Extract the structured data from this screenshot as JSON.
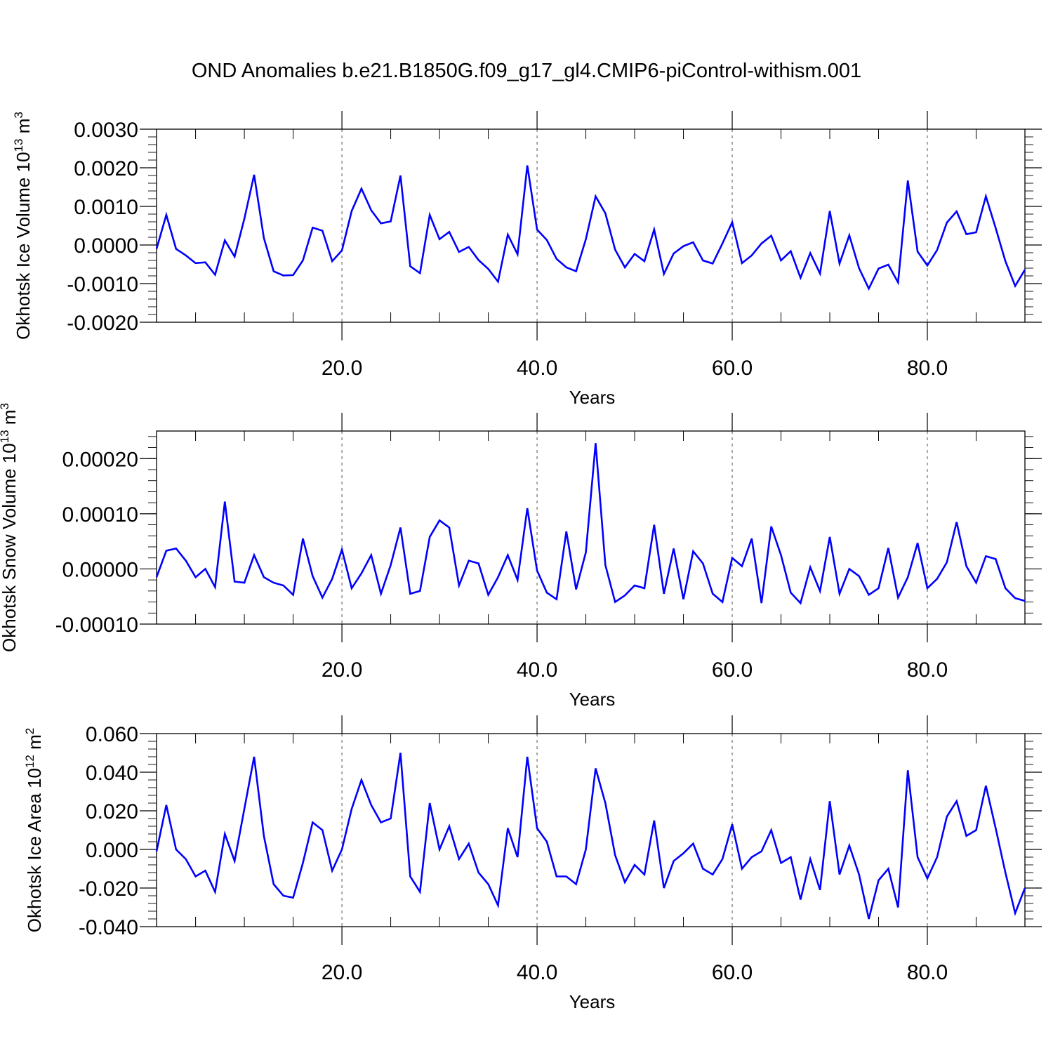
{
  "title": "OND Anomalies b.e21.B1850G.f09_g17_gl4.CMIP6-piControl-withism.001",
  "colors": {
    "line": "#0000ff",
    "axes": "#000000",
    "grid": "#555555"
  },
  "chart_data": [
    {
      "type": "line",
      "ylabel": {
        "text": "Okhotsk Ice Volume 10",
        "sup": "13",
        "unit": " m",
        "unit_sup": "3"
      },
      "xlabel": "Years",
      "xlim": [
        1,
        90
      ],
      "ylim": [
        -0.002,
        0.003
      ],
      "xticks": [
        20,
        40,
        60,
        80
      ],
      "xtick_labels": [
        "20.0",
        "40.0",
        "60.0",
        "80.0"
      ],
      "yticks": [
        -0.002,
        -0.001,
        0.0,
        0.001,
        0.002,
        0.003
      ],
      "ytick_labels": [
        "-0.0020",
        "-0.0010",
        "0.0000",
        "0.0010",
        "0.0020",
        "0.0030"
      ],
      "grid": "vertical dashed at major x ticks",
      "series": [
        {
          "values": [
            -0.0001,
            0.00078,
            -0.0001,
            -0.00027,
            -0.00047,
            -0.00045,
            -0.00077,
            0.00012,
            -0.0003,
            0.00068,
            0.00182,
            0.00018,
            -0.00068,
            -0.00079,
            -0.00078,
            -0.0004,
            0.00045,
            0.00037,
            -0.00042,
            -0.00014,
            0.00088,
            0.00146,
            0.0009,
            0.00056,
            0.00061,
            0.0018,
            -0.00055,
            -0.00073,
            0.00078,
            0.00015,
            0.00034,
            -0.00018,
            -5e-05,
            -0.00039,
            -0.00062,
            -0.00095,
            0.00027,
            -0.00024,
            0.00206,
            0.0004,
            0.00013,
            -0.00036,
            -0.00058,
            -0.00068,
            0.00015,
            0.00126,
            0.00082,
            -0.00012,
            -0.00058,
            -0.00023,
            -0.00042,
            0.0004,
            -0.00075,
            -0.00022,
            -3e-05,
            7e-05,
            -0.0004,
            -0.00048,
            4e-05,
            0.00059,
            -0.00047,
            -0.00027,
            4e-05,
            0.00024,
            -0.0004,
            -0.00016,
            -0.00085,
            -0.00021,
            -0.00074,
            0.00088,
            -0.00048,
            0.00025,
            -0.0006,
            -0.00113,
            -0.00061,
            -0.00051,
            -0.00097,
            0.00167,
            -0.00017,
            -0.00053,
            -0.00013,
            0.00058,
            0.00087,
            0.00028,
            0.00033,
            0.00126,
            0.00044,
            -0.00042,
            -0.00106,
            -0.00064
          ]
        }
      ]
    },
    {
      "type": "line",
      "ylabel": {
        "text": "Okhotsk Snow Volume 10",
        "sup": "13",
        "unit": " m",
        "unit_sup": "3"
      },
      "xlabel": "Years",
      "xlim": [
        1,
        90
      ],
      "ylim": [
        -0.0001,
        0.00025
      ],
      "xticks": [
        20,
        40,
        60,
        80
      ],
      "xtick_labels": [
        "20.0",
        "40.0",
        "60.0",
        "80.0"
      ],
      "yticks": [
        -0.0001,
        0.0,
        0.0001,
        0.0002
      ],
      "ytick_labels": [
        "-0.00010",
        "0.00000",
        "0.00010",
        "0.00020"
      ],
      "grid": "vertical dashed at major x ticks",
      "series": [
        {
          "values": [
            -1.5e-05,
            3.3e-05,
            3.7e-05,
            1.5e-05,
            -1.5e-05,
            0.0,
            -3.3e-05,
            0.000122,
            -2.3e-05,
            -2.5e-05,
            2.5e-05,
            -1.5e-05,
            -2.5e-05,
            -3e-05,
            -4.7e-05,
            5.5e-05,
            -1.3e-05,
            -5.2e-05,
            -1.8e-05,
            3.5e-05,
            -3.5e-05,
            -8e-06,
            2.5e-05,
            -4.5e-05,
            7e-06,
            7.5e-05,
            -4.5e-05,
            -4e-05,
            5.8e-05,
            8.8e-05,
            7.5e-05,
            -3e-05,
            1.5e-05,
            1e-05,
            -4.7e-05,
            -1.5e-05,
            2.5e-05,
            -2e-05,
            0.00011,
            -3e-06,
            -4.3e-05,
            -5.5e-05,
            6.8e-05,
            -3.7e-05,
            3e-05,
            0.000228,
            7e-06,
            -6e-05,
            -4.8e-05,
            -3e-05,
            -3.5e-05,
            8e-05,
            -4.5e-05,
            3.7e-05,
            -5.5e-05,
            3.2e-05,
            1e-05,
            -4.5e-05,
            -6e-05,
            2e-05,
            5e-06,
            5.5e-05,
            -6.2e-05,
            7.7e-05,
            2.5e-05,
            -4.3e-05,
            -6.2e-05,
            3e-06,
            -4e-05,
            5.8e-05,
            -4.5e-05,
            0.0,
            -1.3e-05,
            -4.7e-05,
            -3.5e-05,
            3.8e-05,
            -5.2e-05,
            -1.5e-05,
            4.7e-05,
            -3.5e-05,
            -1.8e-05,
            1.2e-05,
            8.5e-05,
            5e-06,
            -2.5e-05,
            2.3e-05,
            1.8e-05,
            -3.5e-05,
            -5.3e-05,
            -5.8e-05
          ]
        }
      ]
    },
    {
      "type": "line",
      "ylabel": {
        "text": "Okhotsk Ice Area 10",
        "sup": "12",
        "unit": " m",
        "unit_sup": "2"
      },
      "xlabel": "Years",
      "xlim": [
        1,
        90
      ],
      "ylim": [
        -0.04,
        0.06
      ],
      "xticks": [
        20,
        40,
        60,
        80
      ],
      "xtick_labels": [
        "20.0",
        "40.0",
        "60.0",
        "80.0"
      ],
      "yticks": [
        -0.04,
        -0.02,
        0.0,
        0.02,
        0.04,
        0.06
      ],
      "ytick_labels": [
        "-0.040",
        "-0.020",
        "0.000",
        "0.020",
        "0.040",
        "0.060"
      ],
      "grid": "vertical dashed at major x ticks",
      "series": [
        {
          "values": [
            -0.001,
            0.023,
            0.0,
            -0.005,
            -0.014,
            -0.011,
            -0.022,
            0.008,
            -0.006,
            0.021,
            0.048,
            0.007,
            -0.018,
            -0.024,
            -0.025,
            -0.007,
            0.014,
            0.01,
            -0.011,
            0.0,
            0.021,
            0.036,
            0.023,
            0.014,
            0.016,
            0.05,
            -0.014,
            -0.022,
            0.024,
            0.0,
            0.012,
            -0.005,
            0.003,
            -0.012,
            -0.018,
            -0.029,
            0.011,
            -0.004,
            0.048,
            0.011,
            0.004,
            -0.014,
            -0.014,
            -0.018,
            0.0,
            0.042,
            0.024,
            -0.003,
            -0.017,
            -0.008,
            -0.013,
            0.015,
            -0.02,
            -0.006,
            -0.002,
            0.003,
            -0.01,
            -0.013,
            -0.005,
            0.013,
            -0.01,
            -0.004,
            -0.001,
            0.01,
            -0.007,
            -0.004,
            -0.026,
            -0.005,
            -0.021,
            0.025,
            -0.013,
            0.002,
            -0.013,
            -0.036,
            -0.016,
            -0.01,
            -0.03,
            0.041,
            -0.004,
            -0.015,
            -0.004,
            0.017,
            0.025,
            0.007,
            0.01,
            0.033,
            0.011,
            -0.012,
            -0.033,
            -0.02
          ]
        }
      ]
    }
  ]
}
